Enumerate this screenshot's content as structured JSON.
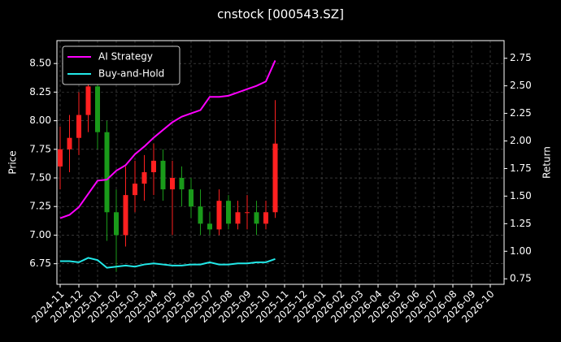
{
  "chart_data": {
    "type": "candlestick",
    "title": "cnstock [000543.SZ]",
    "y_label": "Price",
    "y2_label": "Return",
    "categories": [
      "2024-11",
      null,
      "2024-12",
      null,
      "2025-01",
      null,
      "2025-02",
      null,
      "2025-03",
      null,
      "2025-04",
      null,
      "2025-05",
      null,
      "2025-06",
      null,
      "2025-07",
      null,
      "2025-08",
      null,
      "2025-09",
      null,
      "2025-10",
      null,
      "2025-11",
      null,
      "2025-12",
      null,
      "2026-01",
      null,
      "2026-02",
      null,
      "2026-03",
      null,
      "2026-04",
      null,
      "2026-05",
      null,
      "2026-06",
      null,
      "2026-07",
      null,
      "2026-08",
      null,
      "2026-09",
      null,
      "2026-10",
      null
    ],
    "price": {
      "up_color": "#ff2020",
      "down_color": "#1a9a1a",
      "open": [
        7.6,
        7.75,
        7.85,
        8.05,
        8.3,
        7.9,
        7.2,
        7.0,
        7.35,
        7.45,
        7.55,
        7.65,
        7.4,
        7.5,
        7.4,
        7.25,
        7.1,
        7.05,
        7.3,
        7.1,
        7.2,
        7.2,
        7.1,
        7.2,
        null,
        null,
        null,
        null,
        null,
        null,
        null,
        null,
        null,
        null,
        null,
        null,
        null,
        null,
        null,
        null,
        null,
        null,
        null,
        null,
        null,
        null,
        null,
        null
      ],
      "close": [
        7.75,
        7.85,
        8.05,
        8.3,
        7.9,
        7.2,
        7.0,
        7.35,
        7.45,
        7.55,
        7.65,
        7.4,
        7.5,
        7.4,
        7.25,
        7.1,
        7.05,
        7.3,
        7.1,
        7.2,
        7.2,
        7.1,
        7.2,
        7.8,
        null,
        null,
        null,
        null,
        null,
        null,
        null,
        null,
        null,
        null,
        null,
        null,
        null,
        null,
        null,
        null,
        null,
        null,
        null,
        null,
        null,
        null,
        null,
        null
      ],
      "high": [
        7.95,
        8.05,
        8.25,
        8.45,
        8.4,
        8.0,
        7.4,
        7.6,
        7.65,
        7.7,
        7.8,
        7.75,
        7.65,
        7.6,
        7.5,
        7.4,
        7.2,
        7.4,
        7.35,
        7.3,
        7.35,
        7.3,
        7.3,
        8.18,
        null,
        null,
        null,
        null,
        null,
        null,
        null,
        null,
        null,
        null,
        null,
        null,
        null,
        null,
        null,
        null,
        null,
        null,
        null,
        null,
        null,
        null,
        null,
        null
      ],
      "low": [
        7.4,
        7.55,
        7.7,
        7.9,
        7.75,
        6.95,
        6.68,
        6.9,
        7.2,
        7.3,
        7.35,
        7.3,
        7.0,
        7.25,
        7.15,
        7.0,
        7.0,
        7.0,
        7.05,
        7.05,
        7.05,
        7.0,
        7.05,
        7.15,
        null,
        null,
        null,
        null,
        null,
        null,
        null,
        null,
        null,
        null,
        null,
        null,
        null,
        null,
        null,
        null,
        null,
        null,
        null,
        null,
        null,
        null,
        null,
        null
      ]
    },
    "series": [
      {
        "name": "AI Strategy",
        "color": "#ff00ff",
        "axis": "y2",
        "values": [
          1.3,
          1.33,
          1.4,
          1.52,
          1.64,
          1.65,
          1.73,
          1.78,
          1.88,
          1.95,
          2.03,
          2.1,
          2.17,
          2.22,
          2.25,
          2.28,
          2.4,
          2.4,
          2.41,
          2.44,
          2.47,
          2.5,
          2.54,
          2.73,
          null,
          null,
          null,
          null,
          null,
          null,
          null,
          null,
          null,
          null,
          null,
          null,
          null,
          null,
          null,
          null,
          null,
          null,
          null,
          null,
          null,
          null,
          null,
          null
        ]
      },
      {
        "name": "Buy-and-Hold",
        "color": "#22e8e8",
        "axis": "y2",
        "values": [
          0.91,
          0.91,
          0.9,
          0.94,
          0.92,
          0.85,
          0.86,
          0.87,
          0.86,
          0.88,
          0.89,
          0.88,
          0.87,
          0.87,
          0.88,
          0.88,
          0.9,
          0.88,
          0.88,
          0.89,
          0.89,
          0.9,
          0.9,
          0.93,
          null,
          null,
          null,
          null,
          null,
          null,
          null,
          null,
          null,
          null,
          null,
          null,
          null,
          null,
          null,
          null,
          null,
          null,
          null,
          null,
          null,
          null,
          null,
          null
        ]
      }
    ],
    "ylim": [
      6.57,
      8.7
    ],
    "yticks": [
      6.75,
      7.0,
      7.25,
      7.5,
      7.75,
      8.0,
      8.25,
      8.5
    ],
    "y2lim": [
      0.7,
      2.91
    ],
    "y2ticks": [
      0.75,
      1.0,
      1.25,
      1.5,
      1.75,
      2.0,
      2.25,
      2.5,
      2.75
    ],
    "grid": true,
    "legend": "upper-left"
  }
}
